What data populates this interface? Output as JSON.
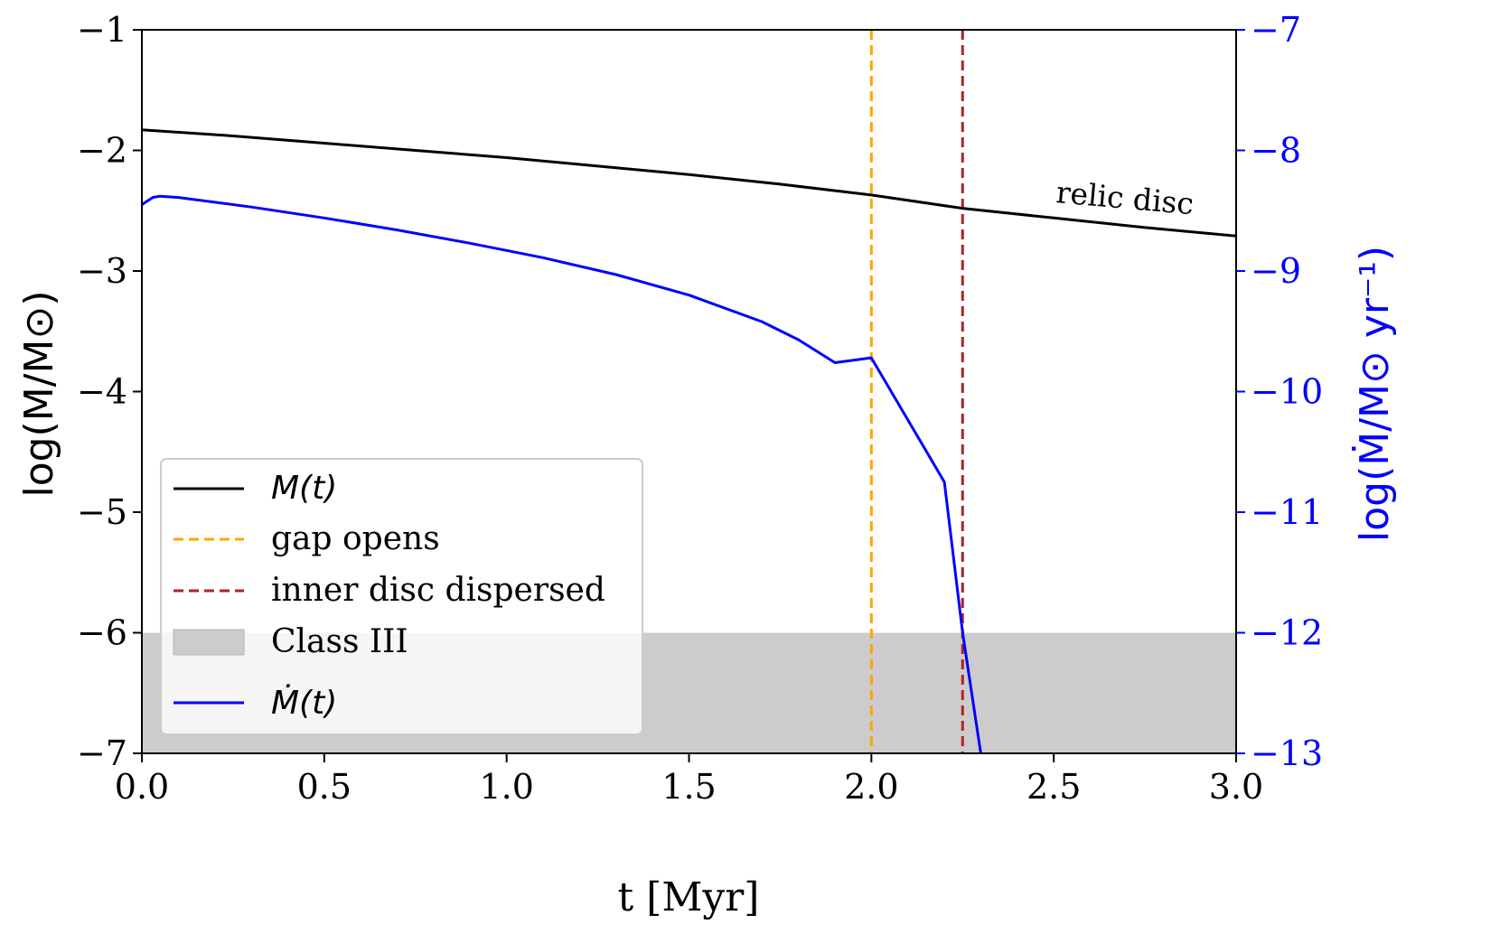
{
  "chart_data": {
    "type": "line",
    "x": {
      "label": "t [Myr]",
      "lim": [
        0.0,
        3.0
      ],
      "ticks": [
        0.0,
        0.5,
        1.0,
        1.5,
        2.0,
        2.5,
        3.0
      ],
      "tick_labels": [
        "0.0",
        "0.5",
        "1.0",
        "1.5",
        "2.0",
        "2.5",
        "3.0"
      ]
    },
    "y_left": {
      "label": "log(M/M⊙)",
      "lim": [
        -7,
        -1
      ],
      "ticks": [
        -7,
        -6,
        -5,
        -4,
        -3,
        -2,
        -1
      ],
      "tick_labels": [
        "−7",
        "−6",
        "−5",
        "−4",
        "−3",
        "−2",
        "−1"
      ]
    },
    "y_right": {
      "label": "log(Ṁ/M⊙ yr⁻¹)",
      "color": "#0000ff",
      "lim": [
        -13,
        -7
      ],
      "ticks": [
        -13,
        -12,
        -11,
        -10,
        -9,
        -8,
        -7
      ],
      "tick_labels": [
        "−13",
        "−12",
        "−11",
        "−10",
        "−9",
        "−8",
        "−7"
      ]
    },
    "series": [
      {
        "name": "M(t)",
        "axis": "left",
        "color": "#000000",
        "x": [
          0.0,
          0.25,
          0.5,
          0.75,
          1.0,
          1.25,
          1.5,
          1.75,
          2.0,
          2.25,
          2.5,
          2.75,
          3.0
        ],
        "values": [
          -1.83,
          -1.88,
          -1.94,
          -2.0,
          -2.06,
          -2.13,
          -2.2,
          -2.28,
          -2.37,
          -2.48,
          -2.56,
          -2.64,
          -2.71
        ]
      },
      {
        "name": "Ṁ(t)",
        "axis": "right",
        "color": "#0000ff",
        "x": [
          0.0,
          0.01,
          0.03,
          0.05,
          0.1,
          0.3,
          0.5,
          0.7,
          0.9,
          1.1,
          1.3,
          1.5,
          1.7,
          1.8,
          1.9,
          2.0,
          2.2,
          2.25,
          2.3
        ],
        "values": [
          -8.45,
          -8.43,
          -8.39,
          -8.38,
          -8.39,
          -8.47,
          -8.56,
          -8.66,
          -8.77,
          -8.89,
          -9.03,
          -9.2,
          -9.42,
          -9.57,
          -9.76,
          -9.72,
          -10.75,
          -12.0,
          -13.0
        ]
      }
    ],
    "vlines": [
      {
        "name": "gap opens",
        "x": 2.0,
        "color": "#ffa500",
        "style": "dashed"
      },
      {
        "name": "inner disc dispersed",
        "x": 2.25,
        "color": "#b22222",
        "style": "dashed"
      }
    ],
    "shaded_region": {
      "name": "Class III",
      "y_min": -7,
      "y_max": -6,
      "color": "#cccccc"
    },
    "annotations": [
      {
        "text": "relic disc",
        "x": 2.5,
        "y": -2.58,
        "rotation_deg": 5
      }
    ],
    "legend": {
      "placement": "lower-left",
      "entries": [
        {
          "label": "M(t)",
          "kind": "line",
          "color": "#000000"
        },
        {
          "label": "gap opens",
          "kind": "dashed",
          "color": "#ffa500"
        },
        {
          "label": "inner disc dispersed",
          "kind": "dashed",
          "color": "#b22222"
        },
        {
          "label": "Class III",
          "kind": "patch",
          "color": "#cccccc"
        },
        {
          "label": "Ṁ(t)",
          "kind": "line",
          "color": "#0000ff"
        }
      ]
    },
    "grid": false
  }
}
